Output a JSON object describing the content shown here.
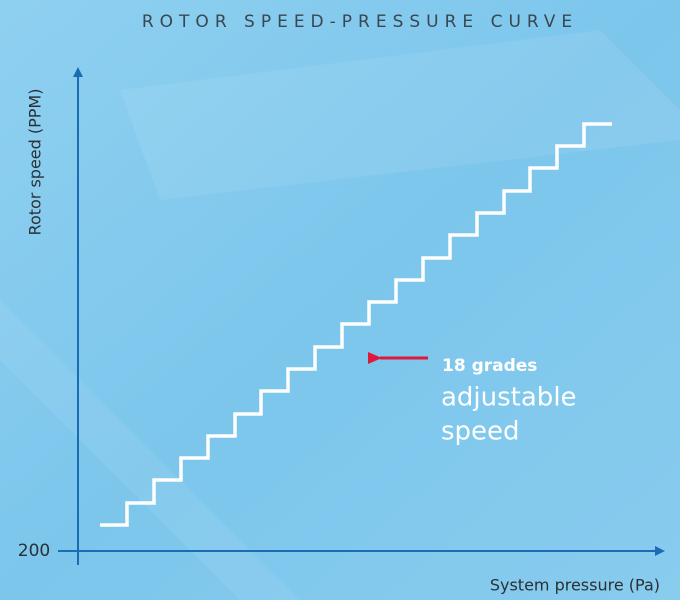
{
  "title": "ROTOR SPEED-PRESSURE CURVE",
  "y_axis_label": "Rotor speed (PPM)",
  "x_axis_label": "System pressure (Pa)",
  "y_tick": 200,
  "annotation": {
    "highlight": "18 grades",
    "lines": [
      "adjustable",
      "speed"
    ]
  }
}
